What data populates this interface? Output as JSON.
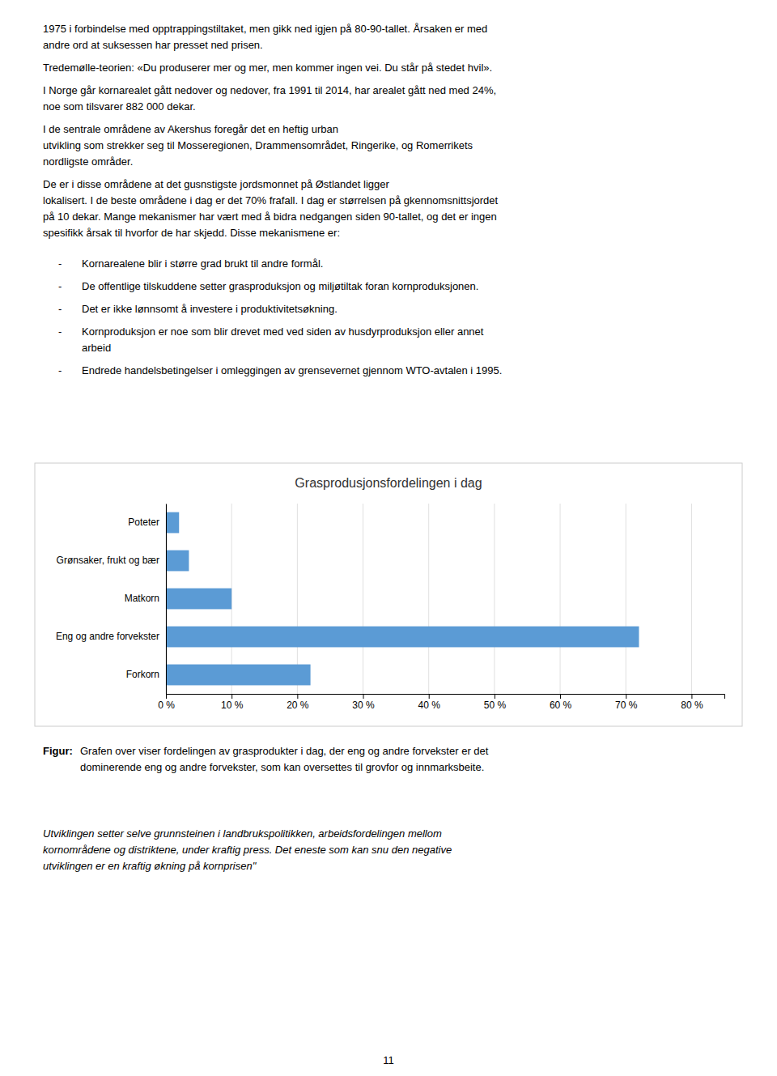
{
  "chart_data": {
    "type": "bar",
    "title": "Grasprodusjonsfordelingen i dag",
    "orientation": "horizontal",
    "categories": [
      "Forkorn",
      "Eng og andre forvekster",
      "Matkorn",
      "Grønsaker, frukt og bær",
      "Poteter"
    ],
    "values": [
      22.0,
      72.0,
      10.0,
      3.5,
      2.0
    ],
    "color": "#5B9BD5",
    "xlim": [
      0,
      85
    ],
    "xticks": [
      {
        "value": 0,
        "label": "0 %"
      },
      {
        "value": 10,
        "label": "10 %"
      },
      {
        "value": 20,
        "label": "20 %"
      },
      {
        "value": 30,
        "label": "30 %"
      },
      {
        "value": 40,
        "label": "40 %"
      },
      {
        "value": 50,
        "label": "50 %"
      },
      {
        "value": 60,
        "label": "60 %"
      },
      {
        "value": 70,
        "label": "70 %"
      },
      {
        "value": 80,
        "label": "80 %"
      }
    ],
    "grid": true
  },
  "page_text": {
    "paragraphs": [
      [
        "1975 i forbindelse med opptrappingstiltaket, men gikk ned igjen på 80-90-tallet. Årsaken er med",
        "andre ord at suksessen har presset ned prisen."
      ],
      [
        "Tredemølle-teorien: «Du produserer mer og mer, men kommer ingen vei. Du står på stedet hvil»."
      ],
      [
        "I Norge går kornarealet gått nedover og nedover, fra 1991 til 2014, har arealet gått ned med 24%,",
        "noe som tilsvarer 882 000 dekar."
      ],
      [
        "I de sentrale områdene av Akershus foregår det en heftig urban",
        "utvikling som strekker seg til Mosseregionen, Drammensområdet, Ringerike, og Romerrikets",
        "nordligste områder."
      ],
      [
        "De er i disse områdene at det gusnstigste jordsmonnet på Østlandet ligger",
        "lokalisert. I de beste områdene i dag er det 70% frafall. I dag er størrelsen på gkennomsnittsjordet",
        "på 10 dekar. Mange mekanismer har vært med å bidra nedgangen siden 90-tallet, og det er ingen",
        "spesifikk årsak til hvorfor de har skjedd. Disse mekanismene er:"
      ]
    ],
    "bullet_symbol": "-",
    "bullets": [
      [
        "Kornarealene blir i større grad brukt til andre formål."
      ],
      [
        "De offentlige tilskuddene setter grasproduksjon og miljøtiltak foran kornproduksjonen."
      ],
      [
        "Det er ikke lønnsomt å investere i produktivitetsøkning."
      ],
      [
        "Kornproduksjon er noe som blir drevet med ved siden av husdyrproduksjon eller annet",
        "arbeid"
      ],
      [
        "Endrede handelsbetingelser i omleggingen av grensevernet gjennom WTO-avtalen i 1995."
      ]
    ],
    "caption_label": "Figur:",
    "caption": [
      "Grafen over viser fordelingen av grasprodukter i dag, der eng og andre forvekster er det",
      "dominerende eng og andre forvekster, som kan oversettes til grovfor og innmarksbeite."
    ],
    "closing": [
      "Utviklingen setter selve grunnsteinen i landbrukspolitikken, arbeidsfordelingen mellom",
      "kornområdene og distriktene, under kraftig press. Det eneste som kan snu den negative",
      "utviklingen er en kraftig økning på kornprisen\""
    ],
    "page_number": "11"
  }
}
